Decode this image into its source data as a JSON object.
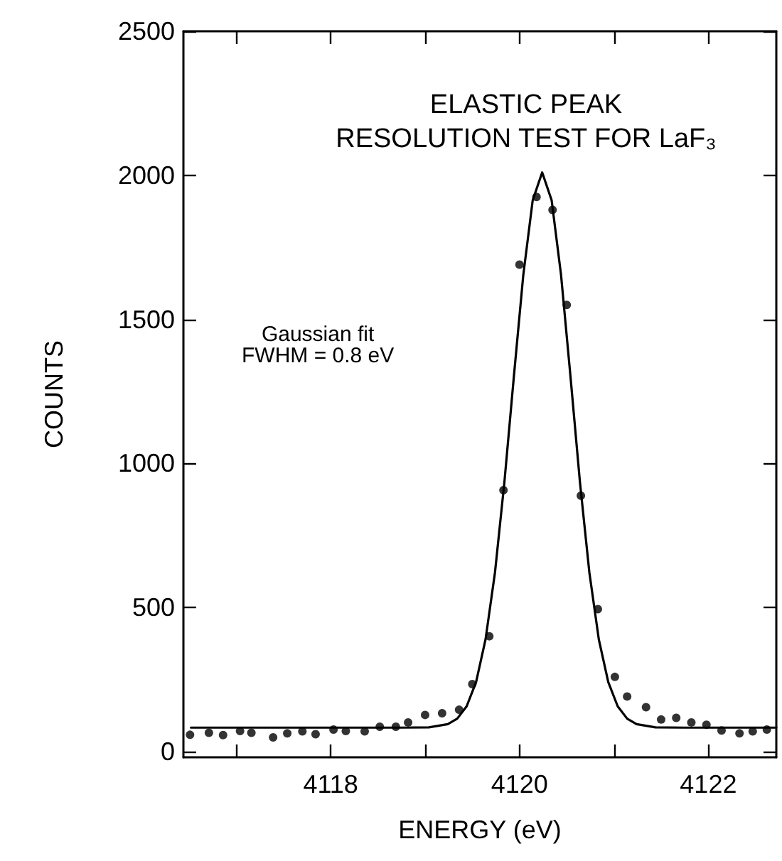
{
  "chart_data": {
    "type": "scatter",
    "title": "ELASTIC PEAK\nRESOLUTION TEST FOR LaF₃",
    "xlabel": "ENERGY (eV)",
    "ylabel": "COUNTS",
    "annotations": [
      "Gaussian fit\nFWHM = 0.8 eV"
    ],
    "xlim": [
      4116.44,
      4122.72
    ],
    "xticks": [
      {
        "value": 4117,
        "label": null
      },
      4118,
      {
        "value": 4119,
        "label": null
      },
      4120,
      {
        "value": 4121,
        "label": null
      },
      4122
    ],
    "ylim": [
      -20,
      2500
    ],
    "yticks": [
      0,
      500,
      1000,
      1500,
      2000,
      2500
    ],
    "grid": false,
    "marker": "circle",
    "series": [
      {
        "color": "#000000",
        "x": [
          4116.51,
          4116.71,
          4116.86,
          4117.04,
          4117.16,
          4117.39,
          4117.54,
          4117.7,
          4117.84,
          4118.03,
          4118.16,
          4118.36,
          4118.52,
          4118.69,
          4118.82,
          4119.0,
          4119.18,
          4119.36,
          4119.5,
          4119.68,
          4119.83,
          4120.0,
          4120.18,
          4120.35,
          4120.5,
          4120.65,
          4120.83,
          4121.01,
          4121.14,
          4121.34,
          4121.5,
          4121.66,
          4121.82,
          4121.98,
          4122.14,
          4122.33,
          4122.47,
          4122.62
        ],
        "values": [
          58,
          65,
          57,
          71,
          65,
          49,
          63,
          70,
          60,
          76,
          71,
          70,
          86,
          86,
          101,
          127,
          133,
          145,
          234,
          400,
          907,
          1690,
          1925,
          1880,
          1550,
          888,
          494,
          259,
          191,
          154,
          111,
          117,
          101,
          93,
          73,
          63,
          70,
          76
        ]
      },
      {
        "type": "line",
        "color": "#000000",
        "marker": "none",
        "line_style": "solid",
        "x": [
          4116.52,
          4118.0,
          4118.74,
          4119.04,
          4119.24,
          4119.34,
          4119.44,
          4119.54,
          4119.64,
          4119.74,
          4119.84,
          4119.94,
          4120.04,
          4120.14,
          4120.24,
          4120.34,
          4120.44,
          4120.54,
          4120.64,
          4120.74,
          4120.84,
          4120.94,
          4121.04,
          4121.14,
          4121.24,
          4121.44,
          4121.74,
          4122.72
        ],
        "values": [
          83,
          83,
          83,
          84,
          95,
          114,
          157,
          241,
          389,
          621,
          935,
          1301,
          1654,
          1914,
          2010,
          1914,
          1654,
          1301,
          935,
          621,
          389,
          241,
          157,
          114,
          95,
          84,
          83,
          83
        ]
      }
    ]
  }
}
